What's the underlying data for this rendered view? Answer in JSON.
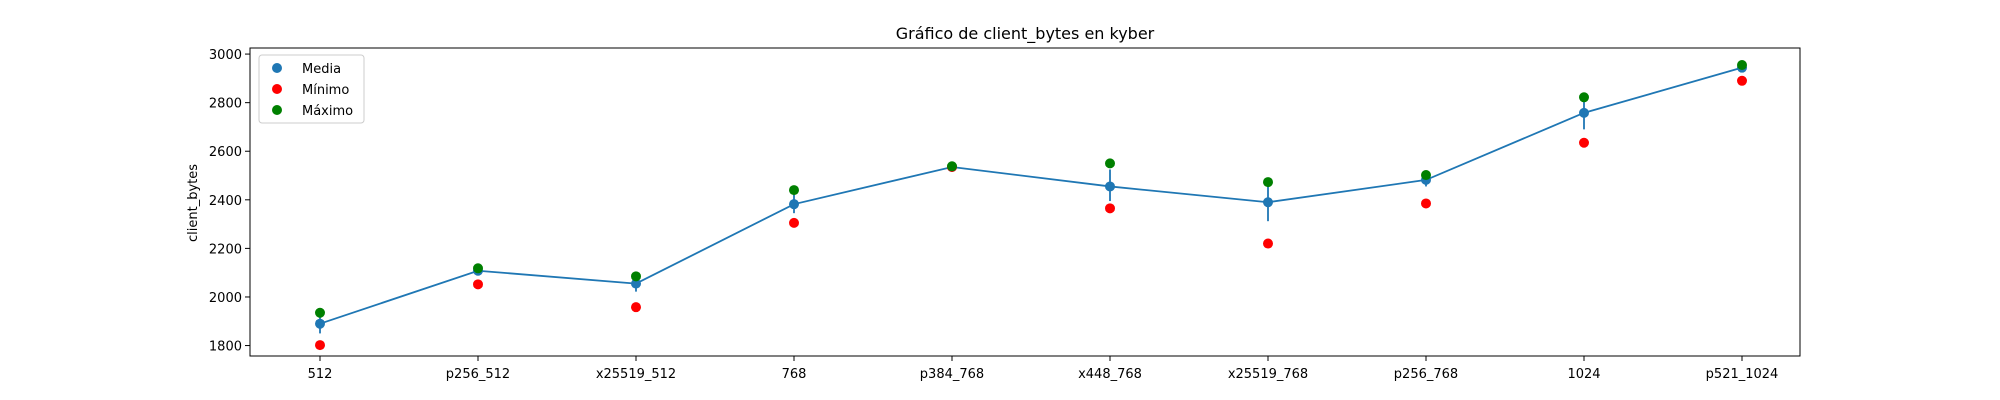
{
  "chart_data": {
    "type": "scatter",
    "title": "Gráfico de client_bytes en kyber",
    "xlabel": "",
    "ylabel": "client_bytes",
    "categories": [
      "512",
      "p256_512",
      "x25519_512",
      "768",
      "p384_768",
      "x448_768",
      "x25519_768",
      "p256_768",
      "1024",
      "p521_1024"
    ],
    "yticks": [
      1800,
      2000,
      2200,
      2400,
      2600,
      2800,
      3000
    ],
    "ylim": [
      1757,
      3025
    ],
    "legend_position": "top-left",
    "grid": false,
    "series": [
      {
        "name": "Media",
        "color": "#1f77b4",
        "connected": true,
        "values": [
          1890,
          2108,
          2055,
          2382,
          2535,
          2455,
          2390,
          2482,
          2758,
          2944
        ],
        "error": [
          [
            1850,
            1932
          ],
          [
            2098,
            2118
          ],
          [
            2022,
            2085
          ],
          [
            2345,
            2420
          ],
          [
            2530,
            2540
          ],
          [
            2395,
            2525
          ],
          [
            2312,
            2470
          ],
          [
            2455,
            2500
          ],
          [
            2690,
            2825
          ],
          [
            2938,
            2950
          ]
        ]
      },
      {
        "name": "Mínimo",
        "color": "#ff0000",
        "values": [
          1802,
          2052,
          1958,
          2305,
          2535,
          2365,
          2220,
          2385,
          2635,
          2890
        ]
      },
      {
        "name": "Máximo",
        "color": "#008000",
        "values": [
          1935,
          2118,
          2085,
          2440,
          2538,
          2550,
          2473,
          2502,
          2822,
          2955
        ]
      }
    ]
  }
}
